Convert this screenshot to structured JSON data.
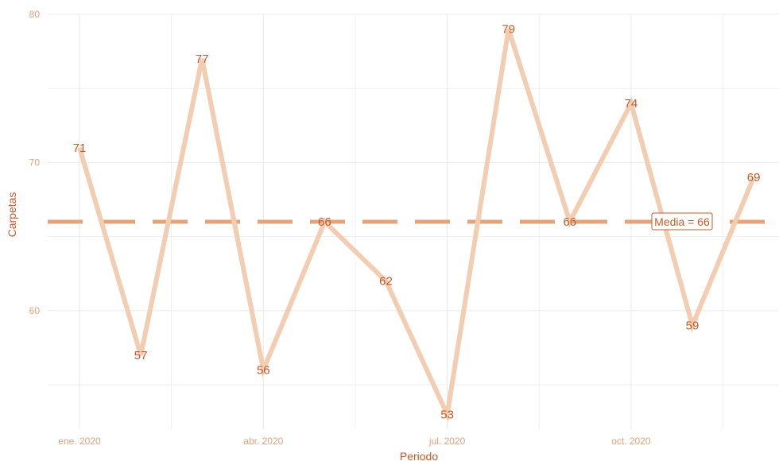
{
  "chart_data": {
    "type": "line",
    "title": "",
    "xlabel": "Periodo",
    "ylabel": "Carpetas",
    "x": [
      "2020-01",
      "2020-02",
      "2020-03",
      "2020-04",
      "2020-05",
      "2020-06",
      "2020-07",
      "2020-08",
      "2020-09",
      "2020-10",
      "2020-11",
      "2020-12"
    ],
    "values": [
      71,
      57,
      77,
      56,
      66,
      62,
      53,
      79,
      66,
      74,
      59,
      69
    ],
    "data_labels": [
      "71",
      "57",
      "77",
      "56",
      "66",
      "62",
      "53",
      "79",
      "66",
      "74",
      "59",
      "69"
    ],
    "ylim": [
      52,
      80
    ],
    "y_ticks": [
      60,
      70,
      80
    ],
    "y_tick_labels": [
      "60",
      "70",
      "80"
    ],
    "x_ticks": [
      "2020-01",
      "2020-04",
      "2020-07",
      "2020-10"
    ],
    "x_tick_labels": [
      "ene. 2020",
      "abr. 2020",
      "jul. 2020",
      "oct. 2020"
    ],
    "mean_value": 66,
    "mean_label": "Media = 66",
    "grid": true,
    "colors": {
      "line": "#f2cdb1",
      "mean_line": "#e3a47b",
      "labels": "#c85a2a",
      "ticks": "#e6a07c",
      "grid": "#ececec"
    }
  }
}
